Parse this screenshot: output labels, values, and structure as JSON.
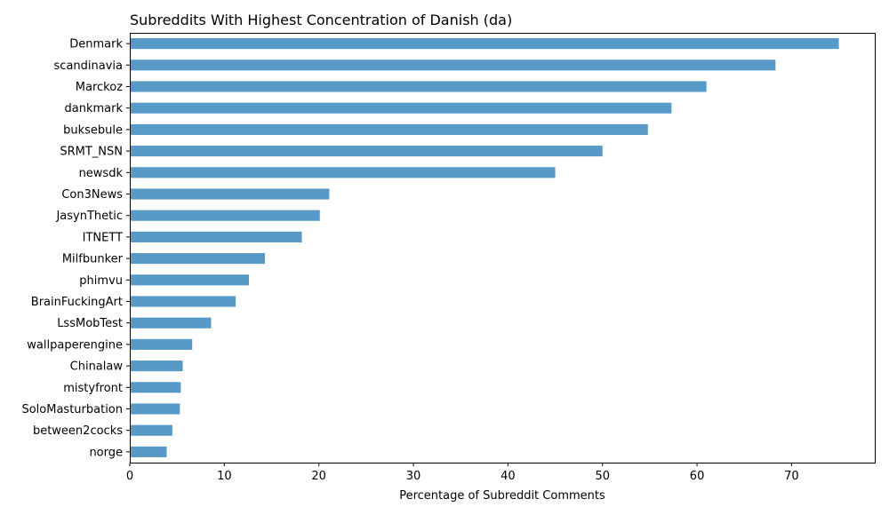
{
  "chart_data": {
    "type": "bar",
    "orientation": "horizontal",
    "title": "Subreddits With Highest Concentration of Danish (da)",
    "xlabel": "Percentage of Subreddit Comments",
    "ylabel": "",
    "xlim": [
      0,
      78.8
    ],
    "xticks": [
      "0",
      "10",
      "20",
      "30",
      "40",
      "50",
      "60",
      "70"
    ],
    "color": "#5799c7",
    "categories": [
      "Denmark",
      "scandinavia",
      "Marckoz",
      "dankmark",
      "buksebule",
      "SRMT_NSN",
      "newsdk",
      "Con3News",
      "JasynThetic",
      "ITNETT",
      "Milfbunker",
      "phimvu",
      "BrainFuckingArt",
      "LssMobTest",
      "wallpaperengine",
      "Chinalaw",
      "mistyfront",
      "SoloMasturbation",
      "between2cocks",
      "norge"
    ],
    "values": [
      75.0,
      68.3,
      61.0,
      57.3,
      54.8,
      50.0,
      45.0,
      21.1,
      20.1,
      18.2,
      14.3,
      12.6,
      11.2,
      8.6,
      6.6,
      5.6,
      5.4,
      5.3,
      4.5,
      3.9
    ]
  }
}
